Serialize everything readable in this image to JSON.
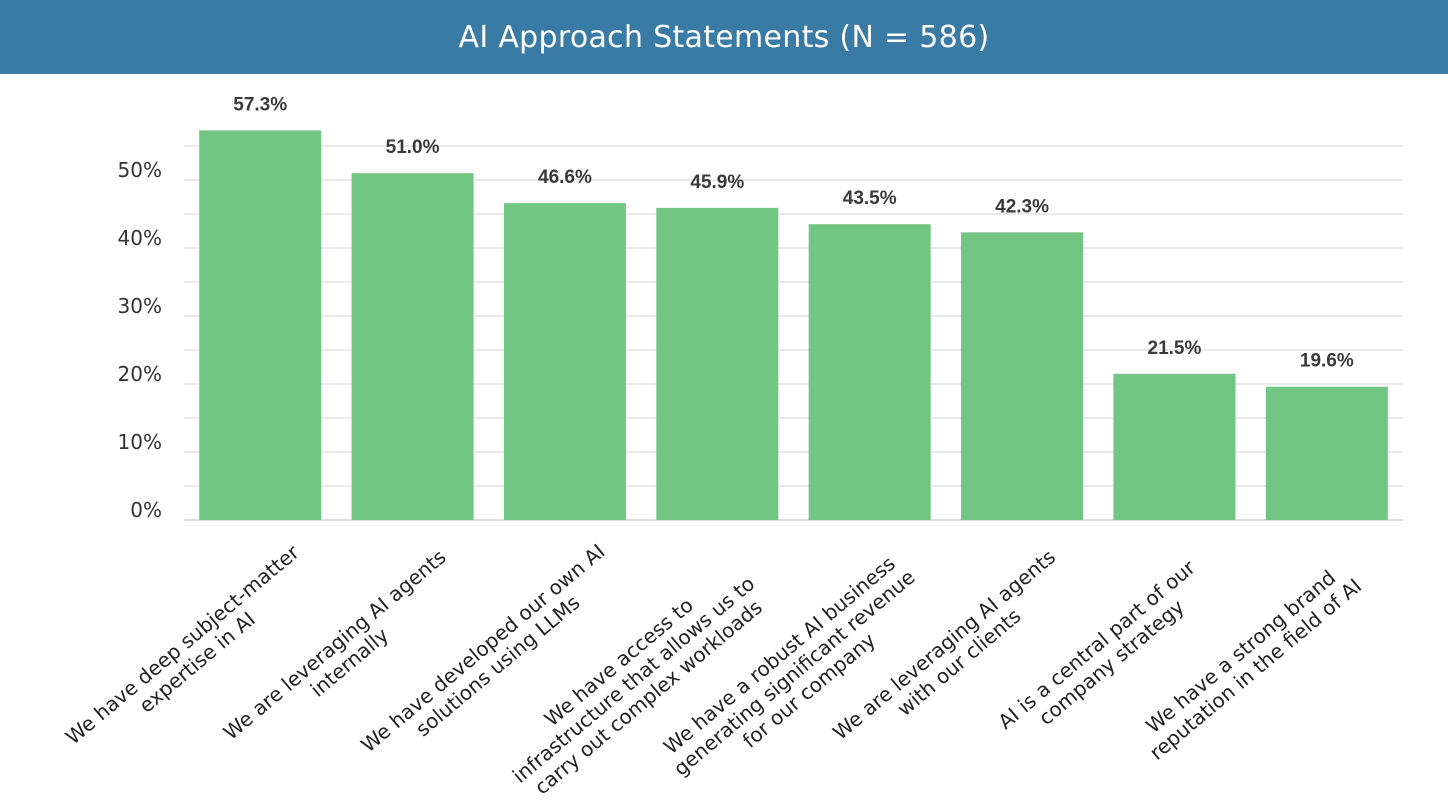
{
  "title": "AI Approach Statements (N = 586)",
  "colors": {
    "header": "#3a7ba6",
    "bar": "#72c582",
    "grid": "#d4d4d4"
  },
  "chart_data": {
    "type": "bar",
    "title": "AI Approach Statements (N = 586)",
    "categories": [
      [
        "We have deep subject-matter",
        "expertise in AI"
      ],
      [
        "We are leveraging AI agents",
        "internally"
      ],
      [
        "We have developed our own AI",
        "solutions using LLMs"
      ],
      [
        "We have access to",
        "infrastructure that allows us to",
        "carry out complex workloads"
      ],
      [
        "We have a robust AI business",
        "generating significant revenue",
        "for our company"
      ],
      [
        "We are leveraging AI agents",
        "with our clients"
      ],
      [
        "AI is a central part of our",
        "company strategy"
      ],
      [
        "We have a strong brand",
        "reputation in the field of AI"
      ]
    ],
    "values": [
      57.3,
      51.0,
      46.6,
      45.9,
      43.5,
      42.3,
      21.5,
      19.6
    ],
    "data_labels": [
      "57.3%",
      "51.0%",
      "46.6%",
      "45.9%",
      "43.5%",
      "42.3%",
      "21.5%",
      "19.6%"
    ],
    "yticks": [
      0,
      10,
      20,
      30,
      40,
      50
    ],
    "ytick_labels": [
      "0%",
      "10%",
      "20%",
      "30%",
      "40%",
      "50%"
    ],
    "ylim": [
      0,
      55
    ],
    "grid": true,
    "xlabel": "",
    "ylabel": ""
  }
}
